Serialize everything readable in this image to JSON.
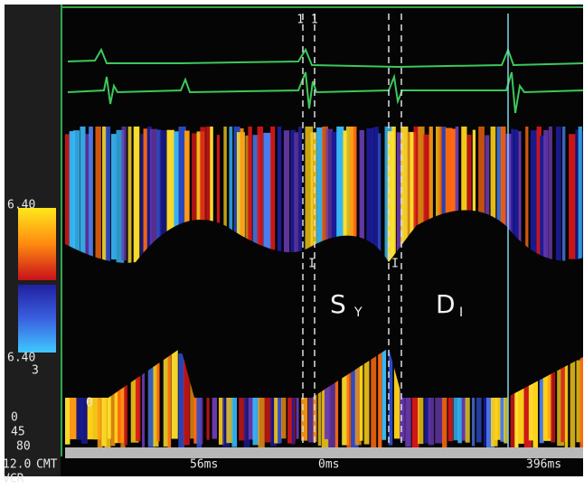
{
  "scale": {
    "top_velocity": "6.40",
    "bottom_velocity": "6.40",
    "gain": "3",
    "labels": [
      "0",
      "45",
      "80"
    ],
    "depth": "12.0",
    "depth_unit": "CMT",
    "mode": "VCR"
  },
  "time_markers": [
    "56ms",
    "0ms",
    "396ms"
  ],
  "cursor_label": "1 1",
  "events": [
    {
      "label": "S",
      "subscript": "Y"
    },
    {
      "label": "D",
      "subscript": "I"
    }
  ],
  "markers": [
    "I",
    "I"
  ],
  "zero_label": "0"
}
